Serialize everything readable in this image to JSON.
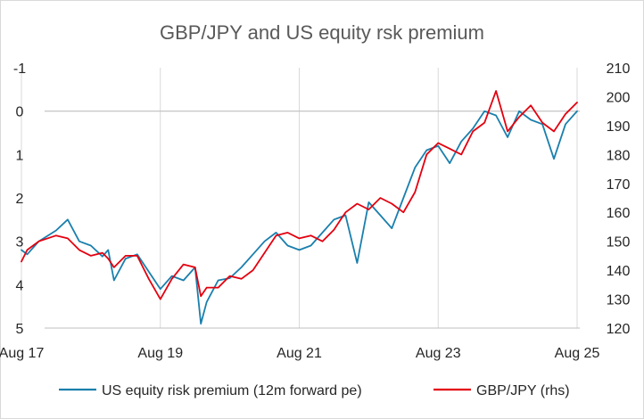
{
  "chart_data": {
    "type": "line",
    "title": "GBP/JPY and US equity rsk premium",
    "y_left": {
      "ticks": [
        "-1",
        "0",
        "1",
        "2",
        "3",
        "4",
        "5"
      ],
      "range": [
        -1,
        5
      ],
      "inverted": true
    },
    "y_right": {
      "ticks": [
        "210",
        "200",
        "190",
        "180",
        "170",
        "160",
        "150",
        "140",
        "130",
        "120"
      ],
      "range": [
        120,
        210
      ]
    },
    "x_ticks": [
      "Aug 17",
      "Aug 19",
      "Aug 21",
      "Aug 23",
      "Aug 25"
    ],
    "x_range": [
      "Aug 17",
      "Aug 25"
    ],
    "grid": {
      "vertical": true,
      "horizontal": false,
      "zero_line": true
    },
    "legend_position": "bottom",
    "series": [
      {
        "name": "US equity risk premium (12m forward pe)",
        "axis": "left",
        "color": "#1a7fad",
        "x": [
          "Aug 17",
          "Sep 17",
          "Nov 17",
          "Feb 18",
          "Apr 18",
          "Jun 18",
          "Aug 18",
          "Oct 18",
          "Nov 18",
          "Dec 18",
          "Feb 19",
          "Apr 19",
          "Jun 19",
          "Aug 19",
          "Oct 19",
          "Dec 19",
          "Feb 20",
          "Mar 20",
          "Apr 20",
          "Jun 20",
          "Aug 20",
          "Oct 20",
          "Dec 20",
          "Feb 21",
          "Apr 21",
          "Jun 21",
          "Aug 21",
          "Oct 21",
          "Dec 21",
          "Feb 22",
          "Apr 22",
          "Jun 22",
          "Aug 22",
          "Oct 22",
          "Dec 22",
          "Feb 23",
          "Apr 23",
          "Jun 23",
          "Aug 23",
          "Oct 23",
          "Dec 23",
          "Feb 24",
          "Apr 24",
          "Jun 24",
          "Aug 24",
          "Oct 24",
          "Dec 24",
          "Feb 25",
          "Apr 25",
          "Jun 25",
          "Aug 25"
        ],
        "y": [
          3.2,
          3.3,
          3.0,
          2.75,
          2.5,
          3.0,
          3.1,
          3.35,
          3.2,
          3.9,
          3.4,
          3.3,
          3.7,
          4.1,
          3.8,
          3.9,
          3.6,
          4.9,
          4.4,
          3.9,
          3.85,
          3.6,
          3.3,
          3.0,
          2.8,
          3.1,
          3.2,
          3.1,
          2.8,
          2.5,
          2.4,
          3.5,
          2.1,
          2.4,
          2.7,
          2.0,
          1.3,
          0.9,
          0.8,
          1.2,
          0.7,
          0.4,
          0.0,
          0.1,
          0.6,
          0.0,
          0.2,
          0.3,
          1.1,
          0.3,
          0.0
        ]
      },
      {
        "name": "GBP/JPY (rhs)",
        "axis": "right",
        "color": "#e3000f",
        "x": [
          "Aug 17",
          "Sep 17",
          "Nov 17",
          "Feb 18",
          "Apr 18",
          "Jun 18",
          "Aug 18",
          "Oct 18",
          "Nov 18",
          "Dec 18",
          "Feb 19",
          "Apr 19",
          "Jun 19",
          "Aug 19",
          "Oct 19",
          "Dec 19",
          "Feb 20",
          "Mar 20",
          "Apr 20",
          "Jun 20",
          "Aug 20",
          "Oct 20",
          "Dec 20",
          "Feb 21",
          "Apr 21",
          "Jun 21",
          "Aug 21",
          "Oct 21",
          "Dec 21",
          "Feb 22",
          "Apr 22",
          "Jun 22",
          "Aug 22",
          "Oct 22",
          "Dec 22",
          "Feb 23",
          "Apr 23",
          "Jun 23",
          "Aug 23",
          "Oct 23",
          "Dec 23",
          "Feb 24",
          "Apr 24",
          "Jun 24",
          "Aug 24",
          "Oct 24",
          "Dec 24",
          "Feb 25",
          "Apr 25",
          "Jun 25",
          "Aug 25"
        ],
        "y": [
          143,
          147,
          150,
          152,
          151,
          147,
          145,
          146,
          144,
          141,
          145,
          145,
          137,
          130,
          137,
          142,
          141,
          131,
          134,
          134,
          138,
          137,
          140,
          146,
          152,
          153,
          151,
          152,
          150,
          154,
          160,
          163,
          161,
          165,
          163,
          160,
          167,
          180,
          184,
          182,
          180,
          188,
          191,
          202,
          188,
          193,
          197,
          191,
          188,
          194,
          198
        ]
      }
    ]
  }
}
